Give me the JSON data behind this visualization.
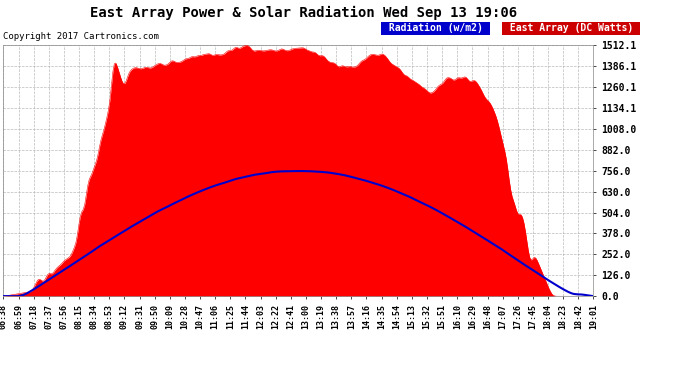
{
  "title": "East Array Power & Solar Radiation Wed Sep 13 19:06",
  "copyright": "Copyright 2017 Cartronics.com",
  "legend_labels": [
    "Radiation (w/m2)",
    "East Array (DC Watts)"
  ],
  "legend_colors_bg": [
    "#0000cc",
    "#cc0000"
  ],
  "y_ticks": [
    0.0,
    126.0,
    252.0,
    378.0,
    504.0,
    630.0,
    756.0,
    882.0,
    1008.0,
    1134.1,
    1260.1,
    1386.1,
    1512.1
  ],
  "y_max": 1512.1,
  "background_color": "#ffffff",
  "plot_bg": "#ffffff",
  "title_color": "#000000",
  "tick_color": "#000000",
  "grid_color": "#aaaaaa",
  "fill_color_dc": "#ff0000",
  "line_color_radiation": "#0000cc",
  "time_labels": [
    "06:38",
    "06:59",
    "07:18",
    "07:37",
    "07:56",
    "08:15",
    "08:34",
    "08:53",
    "09:12",
    "09:31",
    "09:50",
    "10:09",
    "10:28",
    "10:47",
    "11:06",
    "11:25",
    "11:44",
    "12:03",
    "12:22",
    "12:41",
    "13:00",
    "13:19",
    "13:38",
    "13:57",
    "14:16",
    "14:35",
    "14:54",
    "15:13",
    "15:32",
    "15:51",
    "16:10",
    "16:29",
    "16:48",
    "17:07",
    "17:26",
    "17:45",
    "18:04",
    "18:23",
    "18:42",
    "19:01"
  ]
}
